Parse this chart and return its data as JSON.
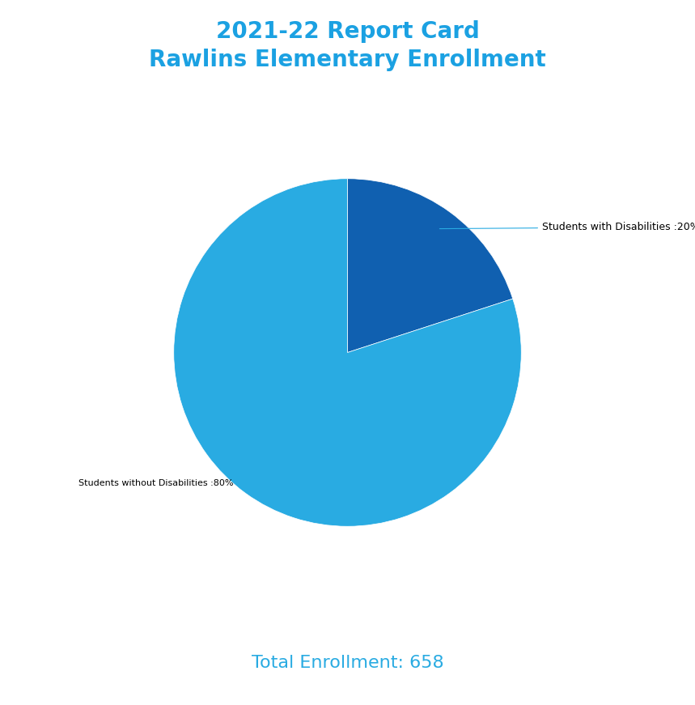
{
  "title_line1": "2021-22 Report Card",
  "title_line2": "Rawlins Elementary Enrollment",
  "title_color": "#1BA1E2",
  "slices": [
    20,
    80
  ],
  "labels": [
    "Students with Disabilities :20%",
    "Students without Disabilities :80%"
  ],
  "colors": [
    "#1060B0",
    "#29ABE2"
  ],
  "startangle": 90,
  "total_label": "Total Enrollment: 658",
  "total_color": "#29ABE2",
  "background_color": "#FFFFFF",
  "label0_fontsize": 9,
  "label1_fontsize": 8,
  "title_fontsize": 20,
  "total_fontsize": 16
}
